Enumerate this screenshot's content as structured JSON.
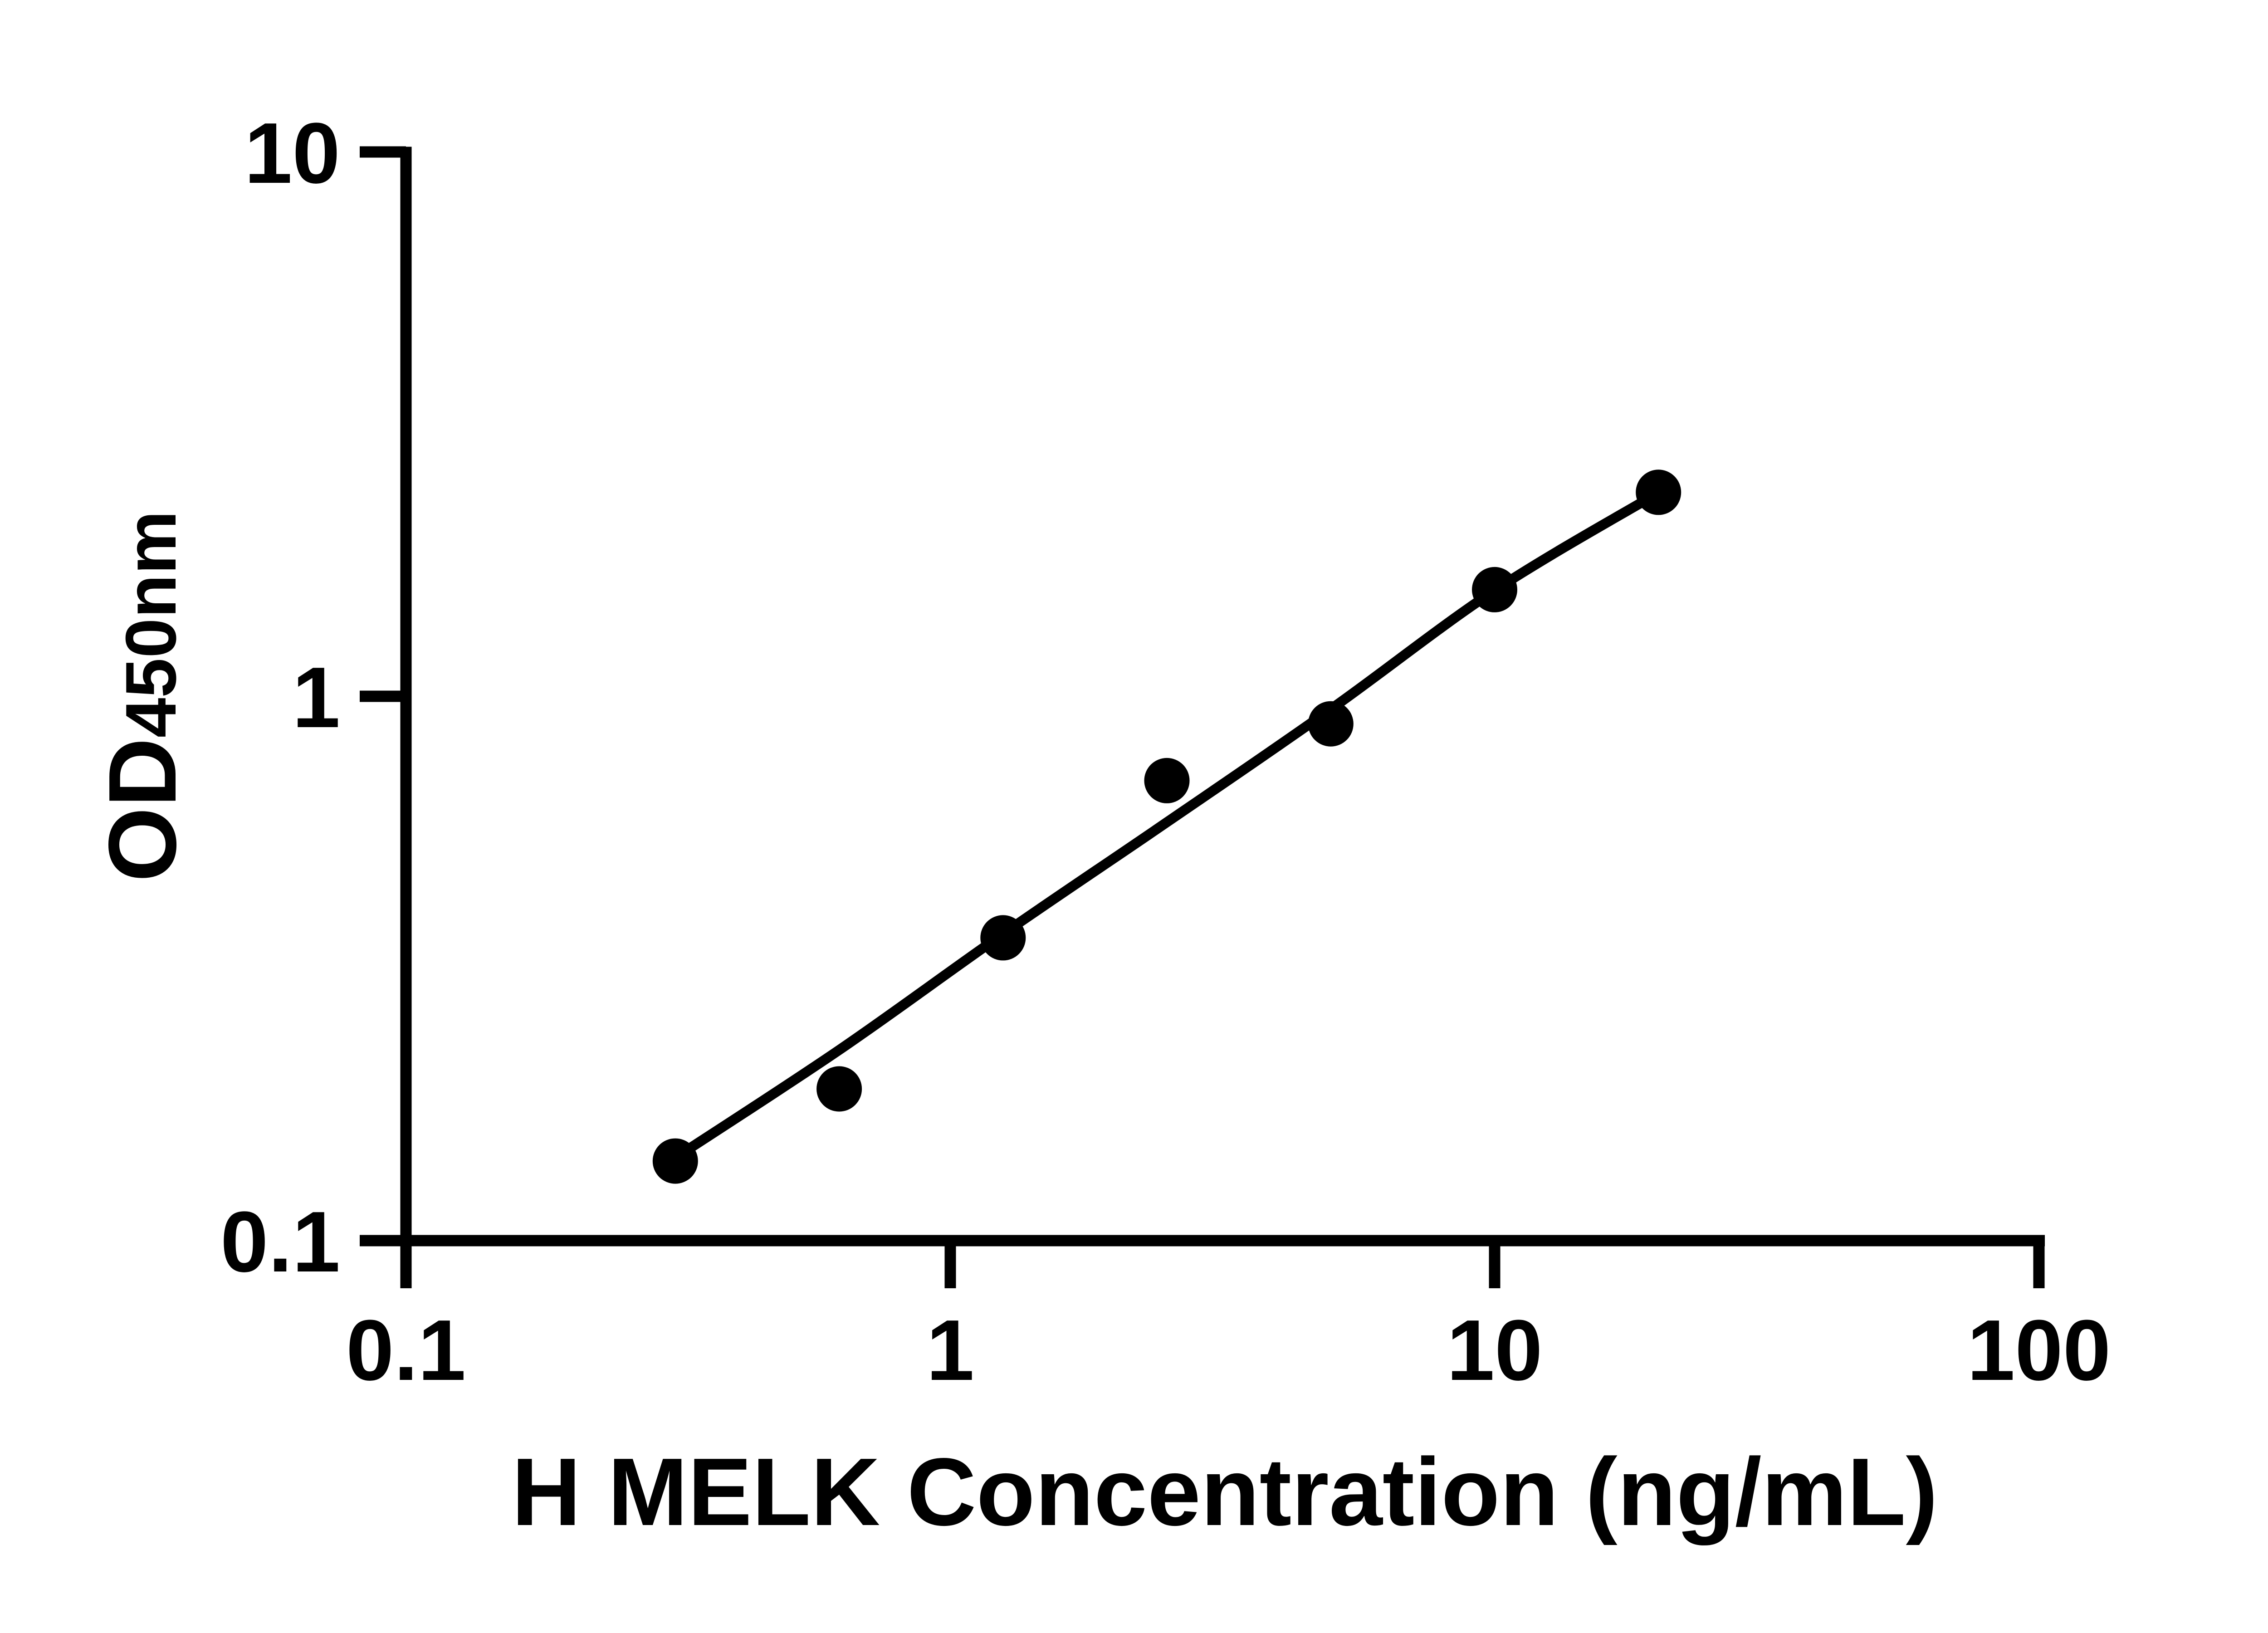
{
  "figure": {
    "background_color": "#ffffff",
    "ink_color": "#000000"
  },
  "chart_data": {
    "type": "scatter",
    "title": "",
    "xlabel": "H MELK Concentration (ng/mL)",
    "ylabel_main": "OD",
    "ylabel_sub": "450nm",
    "x_scale": "log10",
    "y_scale": "log10",
    "xlim": [
      0.1,
      100
    ],
    "ylim": [
      0.1,
      10
    ],
    "grid": false,
    "legend": "none",
    "x_ticks": [
      {
        "value": 0.1,
        "label": "0.1"
      },
      {
        "value": 1,
        "label": "1"
      },
      {
        "value": 10,
        "label": "10"
      },
      {
        "value": 100,
        "label": "100"
      }
    ],
    "y_ticks": [
      {
        "value": 0.1,
        "label": "0.1"
      },
      {
        "value": 1,
        "label": "1"
      },
      {
        "value": 10,
        "label": "10"
      }
    ],
    "series": [
      {
        "name": "standard-points",
        "kind": "markers",
        "marker": "circle",
        "color": "#000000",
        "points": [
          {
            "x": 0.3125,
            "y": 0.14
          },
          {
            "x": 0.625,
            "y": 0.19
          },
          {
            "x": 1.25,
            "y": 0.36
          },
          {
            "x": 2.5,
            "y": 0.7
          },
          {
            "x": 5,
            "y": 0.89
          },
          {
            "x": 10,
            "y": 1.57
          },
          {
            "x": 20,
            "y": 2.37
          }
        ]
      },
      {
        "name": "fitted-curve",
        "kind": "line",
        "marker": "none",
        "color": "#000000",
        "points": [
          {
            "x": 0.3125,
            "y": 0.142
          },
          {
            "x": 0.625,
            "y": 0.224
          },
          {
            "x": 1.25,
            "y": 0.366
          },
          {
            "x": 2.5,
            "y": 0.587
          },
          {
            "x": 5,
            "y": 0.947
          },
          {
            "x": 10,
            "y": 1.565
          },
          {
            "x": 20,
            "y": 2.366
          }
        ]
      }
    ]
  }
}
